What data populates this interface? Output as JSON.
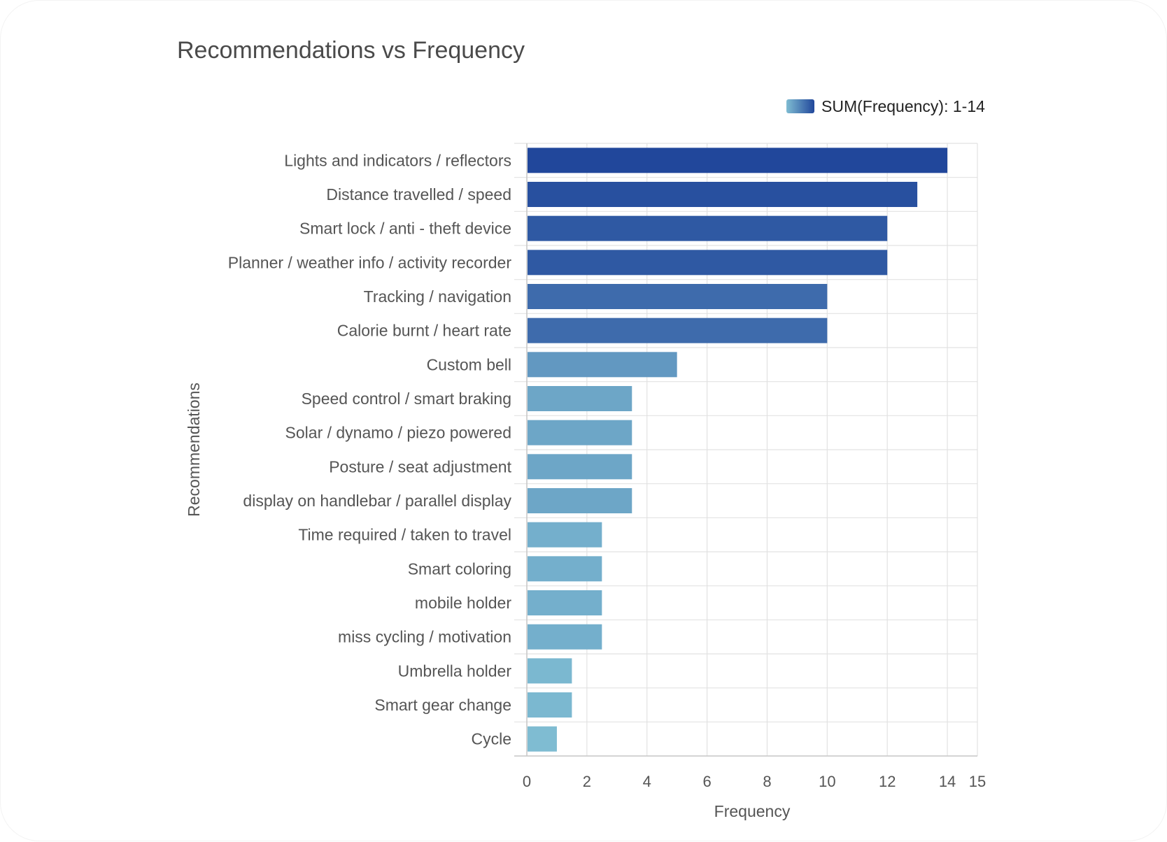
{
  "chart_data": {
    "type": "bar",
    "orientation": "horizontal",
    "title": "Recommendations vs Frequency",
    "xlabel": "Frequency",
    "ylabel": "Recommendations",
    "xlim": [
      0,
      15
    ],
    "x_ticks": [
      "0",
      "2",
      "4",
      "6",
      "8",
      "10",
      "12",
      "14",
      "15"
    ],
    "grid": true,
    "legend": {
      "label": "SUM(Frequency): 1-14",
      "placement": "top-right",
      "gradient": [
        "#7fbcd2",
        "#21479b"
      ]
    },
    "color_range": {
      "min_value": 1,
      "max_value": 14,
      "low_color": "#7fbcd2",
      "high_color": "#21479b"
    },
    "categories": [
      "Lights and indicators / reflectors",
      "Distance travelled / speed",
      "Smart lock / anti - theft device",
      "Planner / weather info / activity recorder",
      "Tracking / navigation",
      "Calorie burnt / heart rate",
      "Custom bell",
      "Speed control / smart braking",
      "Solar / dynamo / piezo powered",
      "Posture / seat adjustment",
      "display on handlebar / parallel display",
      "Time required / taken to travel",
      "Smart coloring",
      "mobile holder",
      "miss cycling / motivation",
      "Umbrella holder",
      "Smart gear change",
      "Cycle"
    ],
    "values": [
      14,
      13,
      12,
      12,
      10,
      10,
      5,
      3.5,
      3.5,
      3.5,
      3.5,
      2.5,
      2.5,
      2.5,
      2.5,
      1.5,
      1.5,
      1
    ]
  }
}
